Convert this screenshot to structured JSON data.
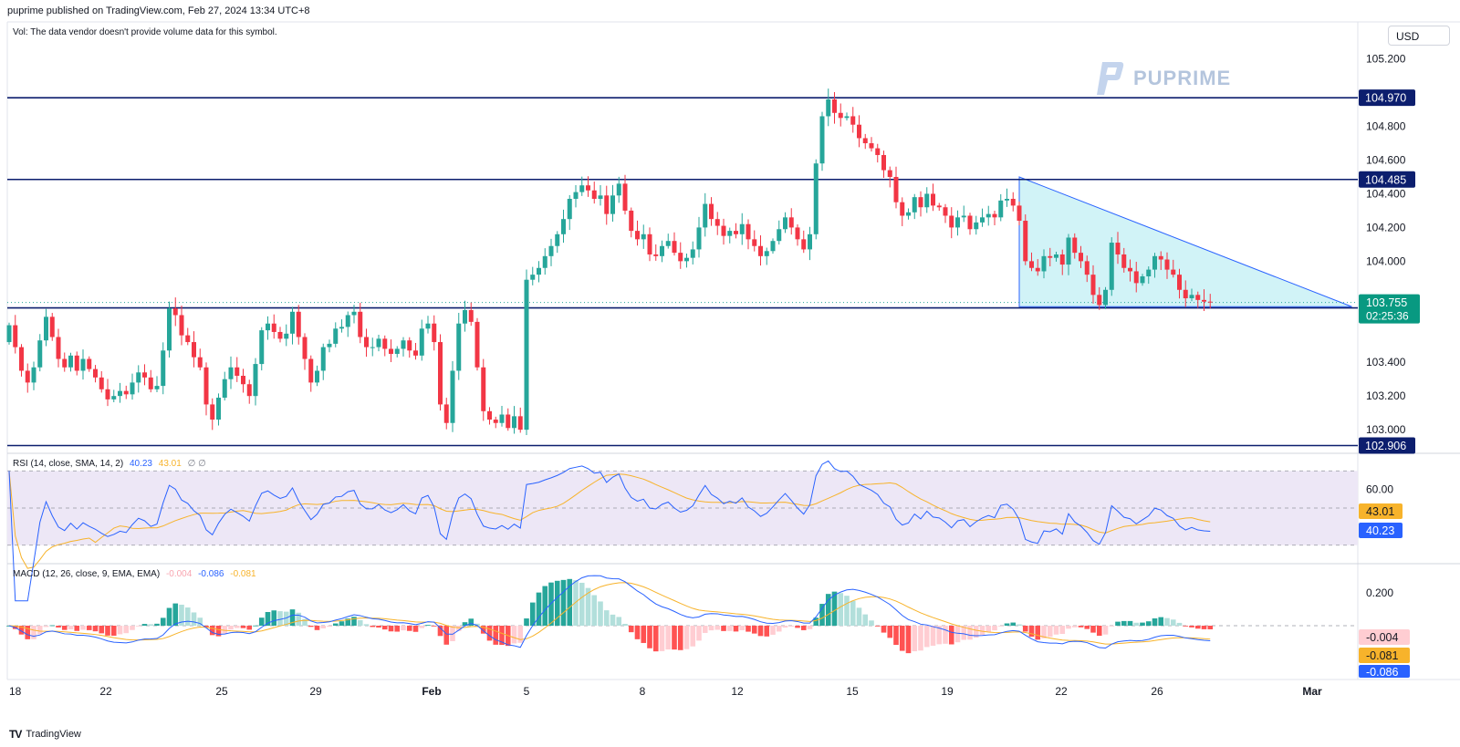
{
  "header": {
    "published": "puprime published on TradingView.com, Feb 27, 2024 13:34 UTC+8",
    "vol_note": "Vol: The data vendor doesn't provide volume data for this symbol.",
    "currency_button": "USD",
    "brand": "PUPRIME",
    "footer_logo": "TV",
    "footer_text": "TradingView"
  },
  "colors": {
    "up": "#26a69a",
    "down": "#f23645",
    "level_line": "#0c1e6e",
    "triangle_fill": "#b2ebf2",
    "triangle_stroke": "#2962ff",
    "rsi_line": "#2962ff",
    "rsi_sma": "#f7b32b",
    "rsi_band": "#ede7f6",
    "macd_line": "#2962ff",
    "signal_line": "#f7b32b"
  },
  "chart_data": {
    "type": "candlestick",
    "price_axis": {
      "range": [
        102.86,
        105.42
      ],
      "ticks": [
        "105.200",
        "104.800",
        "104.600",
        "104.400",
        "104.200",
        "104.000",
        "103.400",
        "103.200",
        "103.000"
      ],
      "tick_values": [
        105.2,
        104.8,
        104.6,
        104.4,
        104.2,
        104.0,
        103.4,
        103.2,
        103.0
      ]
    },
    "x_axis": {
      "labels": [
        "18",
        "22",
        "25",
        "29",
        "Feb",
        "5",
        "8",
        "12",
        "15",
        "19",
        "22",
        "26",
        "Mar"
      ]
    },
    "levels": [
      {
        "label": "104.970",
        "value": 104.97
      },
      {
        "label": "104.485",
        "value": 104.485
      },
      {
        "label": "103.723",
        "value": 103.723
      },
      {
        "label": "102.906",
        "value": 102.906
      }
    ],
    "last_price": {
      "label": "103.755",
      "value": 103.755,
      "countdown": "02:25:36"
    },
    "triangle": {
      "start_index": 164,
      "apex_index": 218,
      "top": 104.5,
      "bottom": 103.73
    },
    "candle_count": 196,
    "closes": [
      103.62,
      103.49,
      103.35,
      103.28,
      103.37,
      103.53,
      103.67,
      103.55,
      103.42,
      103.37,
      103.44,
      103.35,
      103.42,
      103.36,
      103.31,
      103.24,
      103.18,
      103.2,
      103.23,
      103.21,
      103.28,
      103.34,
      103.31,
      103.24,
      103.26,
      103.47,
      103.72,
      103.68,
      103.56,
      103.52,
      103.43,
      103.37,
      103.15,
      103.06,
      103.19,
      103.3,
      103.37,
      103.32,
      103.27,
      103.2,
      103.39,
      103.59,
      103.63,
      103.58,
      103.54,
      103.57,
      103.7,
      103.55,
      103.42,
      103.28,
      103.35,
      103.49,
      103.51,
      103.6,
      103.61,
      103.68,
      103.7,
      103.55,
      103.49,
      103.49,
      103.54,
      103.48,
      103.45,
      103.48,
      103.53,
      103.47,
      103.44,
      103.6,
      103.63,
      103.52,
      103.15,
      103.04,
      103.35,
      103.63,
      103.71,
      103.64,
      103.37,
      103.11,
      103.06,
      103.04,
      103.09,
      103.01,
      103.08,
      103.0,
      103.89,
      103.92,
      103.96,
      104.03,
      104.09,
      104.16,
      104.25,
      104.37,
      104.41,
      104.45,
      104.42,
      104.37,
      104.39,
      104.28,
      104.39,
      104.46,
      104.3,
      104.18,
      104.13,
      104.16,
      104.04,
      104.03,
      104.09,
      104.12,
      104.05,
      104.0,
      104.02,
      104.07,
      104.2,
      104.34,
      104.25,
      104.21,
      104.15,
      104.18,
      104.16,
      104.22,
      104.13,
      104.09,
      104.03,
      104.06,
      104.12,
      104.19,
      104.26,
      104.2,
      104.13,
      104.07,
      104.16,
      104.58,
      104.86,
      104.96,
      104.88,
      104.85,
      104.86,
      104.81,
      104.73,
      104.7,
      104.67,
      104.63,
      104.54,
      104.5,
      104.35,
      104.27,
      104.29,
      104.38,
      104.32,
      104.4,
      104.33,
      104.32,
      104.27,
      104.2,
      104.26,
      104.27,
      104.19,
      104.23,
      104.26,
      104.28,
      104.26,
      104.36,
      104.37,
      104.33,
      104.24,
      104.0,
      103.96,
      103.94,
      104.03,
      104.02,
      104.04,
      103.98,
      104.14,
      104.05,
      104.0,
      103.92,
      103.8,
      103.74,
      103.83,
      104.11,
      104.04,
      103.96,
      103.94,
      103.87,
      103.91,
      103.95,
      104.03,
      104.01,
      103.95,
      103.92,
      103.83,
      103.78,
      103.8,
      103.77,
      103.76,
      103.755
    ],
    "opens": [
      103.52,
      103.62,
      103.49,
      103.35,
      103.28,
      103.37,
      103.53,
      103.67,
      103.55,
      103.42,
      103.37,
      103.44,
      103.35,
      103.42,
      103.36,
      103.31,
      103.24,
      103.18,
      103.2,
      103.23,
      103.21,
      103.28,
      103.34,
      103.31,
      103.24,
      103.26,
      103.47,
      103.72,
      103.68,
      103.56,
      103.52,
      103.43,
      103.37,
      103.15,
      103.06,
      103.19,
      103.3,
      103.37,
      103.32,
      103.27,
      103.2,
      103.39,
      103.59,
      103.63,
      103.58,
      103.54,
      103.57,
      103.7,
      103.55,
      103.42,
      103.28,
      103.35,
      103.49,
      103.51,
      103.6,
      103.61,
      103.68,
      103.7,
      103.55,
      103.49,
      103.49,
      103.54,
      103.48,
      103.45,
      103.48,
      103.53,
      103.47,
      103.44,
      103.6,
      103.63,
      103.52,
      103.15,
      103.04,
      103.35,
      103.63,
      103.71,
      103.64,
      103.37,
      103.11,
      103.06,
      103.04,
      103.09,
      103.01,
      103.08,
      103.0,
      103.89,
      103.92,
      103.96,
      104.03,
      104.09,
      104.16,
      104.25,
      104.37,
      104.41,
      104.45,
      104.42,
      104.37,
      104.39,
      104.28,
      104.39,
      104.46,
      104.3,
      104.18,
      104.13,
      104.16,
      104.04,
      104.03,
      104.09,
      104.12,
      104.05,
      104.0,
      104.02,
      104.07,
      104.2,
      104.34,
      104.25,
      104.21,
      104.15,
      104.18,
      104.16,
      104.22,
      104.13,
      104.09,
      104.03,
      104.06,
      104.12,
      104.19,
      104.26,
      104.2,
      104.13,
      104.07,
      104.16,
      104.58,
      104.86,
      104.96,
      104.88,
      104.85,
      104.86,
      104.81,
      104.73,
      104.7,
      104.67,
      104.63,
      104.54,
      104.5,
      104.35,
      104.27,
      104.29,
      104.38,
      104.32,
      104.4,
      104.33,
      104.32,
      104.27,
      104.2,
      104.26,
      104.27,
      104.19,
      104.23,
      104.26,
      104.28,
      104.26,
      104.36,
      104.37,
      104.33,
      104.24,
      104.0,
      103.96,
      103.94,
      104.03,
      104.02,
      104.04,
      103.98,
      104.14,
      104.05,
      104.0,
      103.92,
      103.8,
      103.74,
      103.83,
      104.11,
      104.04,
      103.96,
      103.94,
      103.87,
      103.91,
      103.95,
      104.03,
      104.01,
      103.95,
      103.92,
      103.83,
      103.78,
      103.8,
      103.77,
      103.76
    ],
    "rsi": {
      "label": "RSI (14, close, SMA, 14, 2)",
      "value_label": "40.23",
      "sma_label": "43.01",
      "extra": "∅ ∅",
      "axis_label": "60.00",
      "range": [
        22,
        78
      ],
      "levels": [
        70,
        50,
        30
      ]
    },
    "macd": {
      "label": "MACD (12, 26, close, 9, EMA, EMA)",
      "hist_label": "-0.004",
      "macd_label": "-0.086",
      "signal_label": "-0.081",
      "axis_label": "0.200",
      "range": [
        -0.28,
        0.32
      ]
    }
  }
}
